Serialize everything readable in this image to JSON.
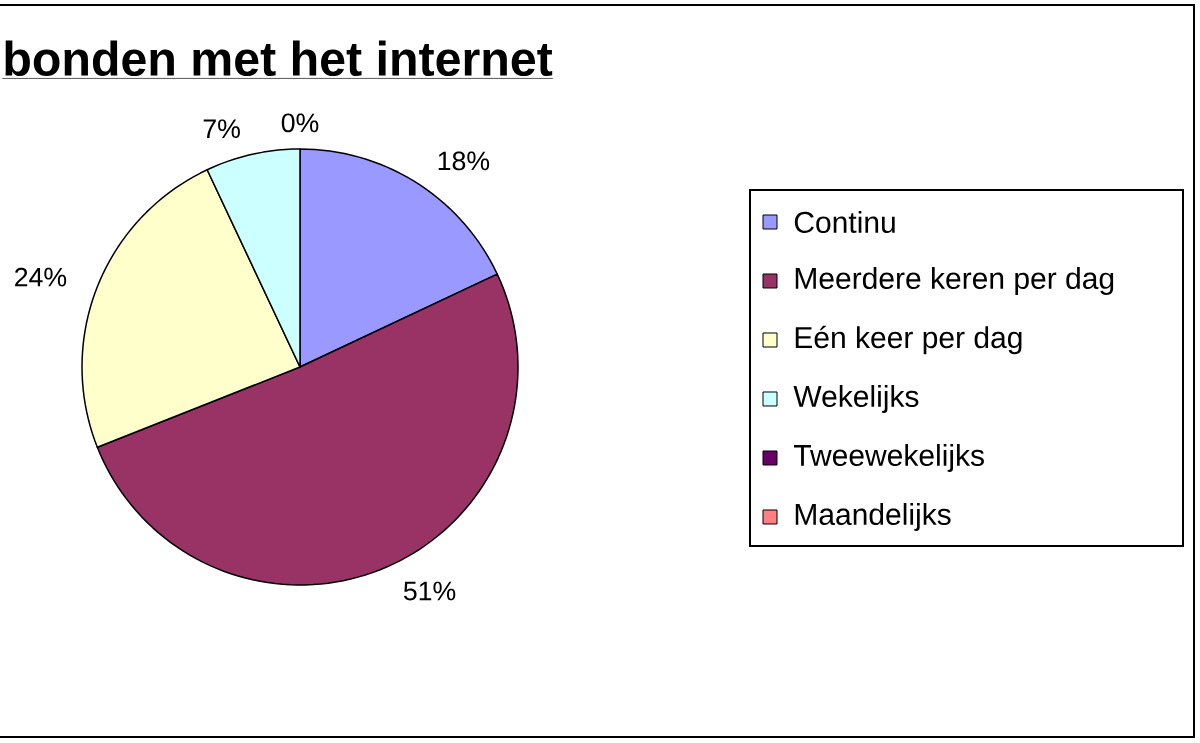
{
  "chart_data": {
    "type": "pie",
    "title": "bonden met het internet",
    "categories": [
      "Continu",
      "Meerdere keren per dag",
      "Eén keer per dag",
      "Wekelijks",
      "Tweewekelijks",
      "Maandelijks"
    ],
    "values": [
      18,
      51,
      24,
      7,
      0,
      0
    ],
    "colors": [
      "#9999ff",
      "#993366",
      "#ffffcc",
      "#ccffff",
      "#660066",
      "#ff8080"
    ],
    "value_labels": [
      "18%",
      "51%",
      "24%",
      "7%",
      "0%",
      null
    ],
    "legend": "right"
  }
}
